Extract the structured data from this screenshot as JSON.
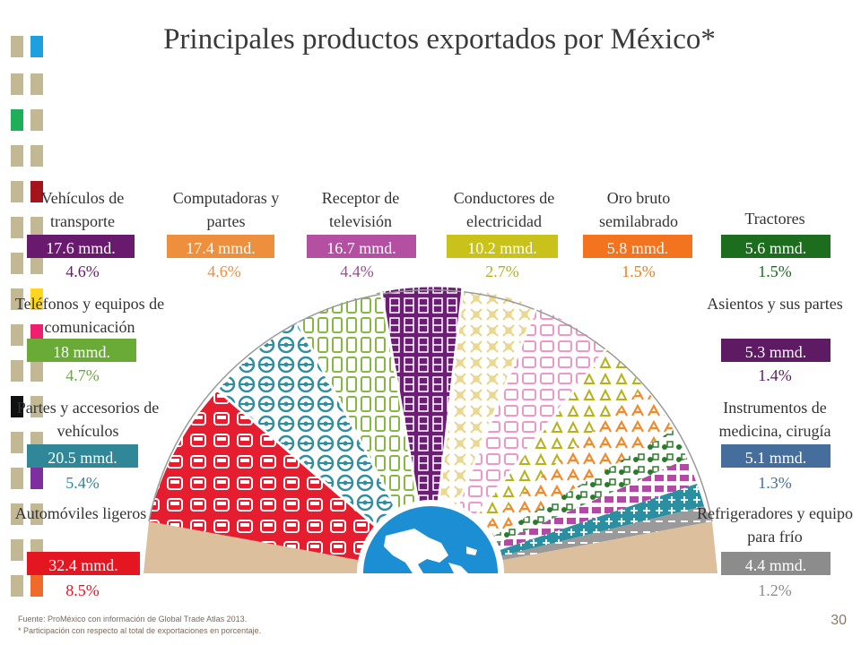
{
  "title": "Principales productos exportados por México*",
  "products": [
    {
      "name": "Vehículos de transporte",
      "value": "17.6 mmd.",
      "pct": "4.6%",
      "color": "#6a1a6e",
      "pct_color": "#6a1a6e"
    },
    {
      "name": "Computadoras y partes",
      "value": "17.4 mmd.",
      "pct": "4.6%",
      "color": "#ee8f3e",
      "pct_color": "#ee8f3e"
    },
    {
      "name": "Receptor de televisión",
      "value": "16.7 mmd.",
      "pct": "4.4%",
      "color": "#b44fa2",
      "pct_color": "#a0489a"
    },
    {
      "name": "Conductores de electricidad",
      "value": "10.2 mmd.",
      "pct": "2.7%",
      "color": "#c8c21a",
      "pct_color": "#b5b018"
    },
    {
      "name": "Oro bruto semilabrado",
      "value": "5.8 mmd.",
      "pct": "1.5%",
      "color": "#f4731e",
      "pct_color": "#e8801e"
    },
    {
      "name": "Tractores",
      "value": "5.6 mmd.",
      "pct": "1.5%",
      "color": "#1c6e1e",
      "pct_color": "#1c6e1e"
    },
    {
      "name": "Teléfonos y equipos de comunicación",
      "value": "18 mmd.",
      "pct": "4.7%",
      "color": "#6aab38",
      "pct_color": "#6aab38"
    },
    {
      "name": "Asientos y sus partes",
      "value": "5.3 mmd.",
      "pct": "1.4%",
      "color": "#5e1a63",
      "pct_color": "#5e1a63"
    },
    {
      "name": "Partes y accesorios de vehículos",
      "value": "20.5 mmd.",
      "pct": "5.4%",
      "color": "#2f8797",
      "pct_color": "#2f8797"
    },
    {
      "name": "Instrumentos de medicina, cirugía",
      "value": "5.1 mmd.",
      "pct": "1.3%",
      "color": "#456e9c",
      "pct_color": "#456e9c"
    },
    {
      "name": "Automóviles ligeros",
      "value": "32.4 mmd.",
      "pct": "8.5%",
      "color": "#e41622",
      "pct_color": "#e41622"
    },
    {
      "name": "Refrigeradores y equipo para frío",
      "value": "4.4 mmd.",
      "pct": "1.2%",
      "color": "#8c8c8c",
      "pct_color": "#8c8c8c"
    }
  ],
  "footnotes": {
    "source": "Fuente: ProMéxico con información de  Global Trade Atlas 2013.",
    "note": "* Participación con respecto al total de exportaciones en porcentaje."
  },
  "page_number": "30",
  "icons": {
    "globe": "globe-americas-icon",
    "wedge_patterns": [
      "car-icon",
      "steering-wheel-icon",
      "phone-icon",
      "cabinet-icon",
      "tv-icon",
      "cable-icon",
      "gold-bar-icon",
      "tractor-icon",
      "seat-icon",
      "medical-instrument-icon",
      "fridge-icon"
    ]
  }
}
